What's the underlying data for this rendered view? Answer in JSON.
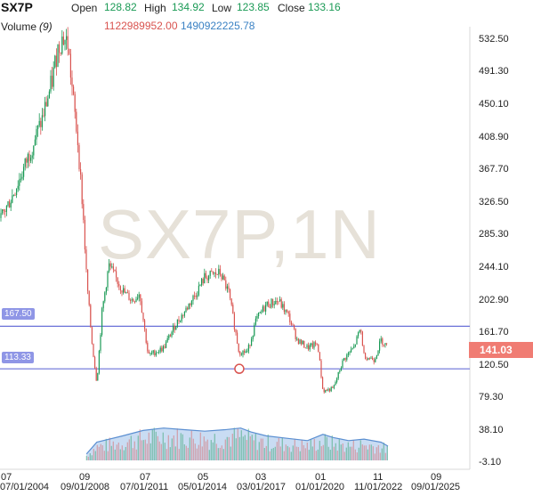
{
  "header": {
    "symbol": "SX7P",
    "open_label": "Open",
    "open_value": "128.82",
    "high_label": "High",
    "high_value": "134.92",
    "low_label": "Low",
    "low_value": "123.85",
    "close_label": "Close",
    "close_value": "133.16",
    "volume_label": "Volume",
    "volume_period": "(9)",
    "volume_value": "1122989952.00",
    "volume_ma_value": "1490922225.78"
  },
  "watermark": "SX7P,1N",
  "levels": {
    "upper": "167.50",
    "lower": "113.33"
  },
  "last_price": "141.03",
  "colors": {
    "up": "#1a9a55",
    "down": "#d9534f",
    "level_line": "#6a70d8",
    "level_badge": "#8f96e6",
    "price_badge": "#f07c73",
    "volume_area": "#c9dcf3",
    "volume_line": "#5b8fd1"
  },
  "chart_data": {
    "type": "candlestick",
    "title": "SX7P",
    "price_axis_ticks": [
      "532.50",
      "491.30",
      "450.10",
      "408.90",
      "367.70",
      "326.50",
      "285.30",
      "244.10",
      "202.90",
      "161.70",
      "120.50",
      "79.30",
      "38.10",
      "-3.10"
    ],
    "x_axis_major_labels": [
      "07/01/2004",
      "09/01/2008",
      "07/01/2011",
      "05/01/2014",
      "03/01/2017",
      "01/01/2020",
      "11/01/2022",
      "09/01/2025"
    ],
    "x_axis_minor_labels": [
      "07",
      "09",
      "07",
      "05",
      "03",
      "01",
      "11",
      "09"
    ],
    "ylim": [
      -3.1,
      560
    ],
    "horizontal_levels": [
      167.5,
      113.33
    ],
    "price_path": [
      [
        "2004-07",
        305
      ],
      [
        "2005-01",
        330
      ],
      [
        "2005-07",
        360
      ],
      [
        "2006-01",
        395
      ],
      [
        "2006-07",
        430
      ],
      [
        "2007-01",
        480
      ],
      [
        "2007-04",
        520
      ],
      [
        "2007-07",
        535
      ],
      [
        "2007-10",
        528
      ],
      [
        "2008-01",
        460
      ],
      [
        "2008-04",
        400
      ],
      [
        "2008-07",
        310
      ],
      [
        "2008-09",
        230
      ],
      [
        "2008-12",
        150
      ],
      [
        "2009-03",
        95
      ],
      [
        "2009-06",
        185
      ],
      [
        "2009-10",
        245
      ],
      [
        "2010-03",
        225
      ],
      [
        "2010-07",
        210
      ],
      [
        "2010-12",
        200
      ],
      [
        "2011-04",
        210
      ],
      [
        "2011-09",
        130
      ],
      [
        "2012-06",
        140
      ],
      [
        "2013-01",
        170
      ],
      [
        "2013-06",
        185
      ],
      [
        "2014-01",
        210
      ],
      [
        "2014-06",
        230
      ],
      [
        "2015-03",
        235
      ],
      [
        "2015-08",
        210
      ],
      [
        "2016-02",
        135
      ],
      [
        "2016-07",
        135
      ],
      [
        "2016-12",
        175
      ],
      [
        "2017-06",
        195
      ],
      [
        "2018-01",
        200
      ],
      [
        "2018-07",
        180
      ],
      [
        "2018-12",
        150
      ],
      [
        "2019-06",
        140
      ],
      [
        "2019-12",
        145
      ],
      [
        "2020-03",
        85
      ],
      [
        "2020-09",
        88
      ],
      [
        "2021-03",
        125
      ],
      [
        "2021-09",
        140
      ],
      [
        "2022-01",
        165
      ],
      [
        "2022-03",
        130
      ],
      [
        "2022-09",
        125
      ],
      [
        "2023-01",
        150
      ],
      [
        "2023-05",
        141.03
      ]
    ],
    "volume_path": [
      [
        "2008-09",
        5
      ],
      [
        "2009-03",
        20
      ],
      [
        "2010-06",
        28
      ],
      [
        "2011-06",
        35
      ],
      [
        "2012-06",
        38
      ],
      [
        "2013-06",
        36
      ],
      [
        "2014-06",
        34
      ],
      [
        "2015-06",
        36
      ],
      [
        "2016-03",
        38
      ],
      [
        "2016-09",
        33
      ],
      [
        "2017-06",
        28
      ],
      [
        "2018-06",
        25
      ],
      [
        "2019-06",
        22
      ],
      [
        "2020-03",
        30
      ],
      [
        "2020-09",
        26
      ],
      [
        "2021-06",
        22
      ],
      [
        "2022-03",
        24
      ],
      [
        "2023-01",
        20
      ],
      [
        "2023-05",
        15
      ]
    ]
  }
}
